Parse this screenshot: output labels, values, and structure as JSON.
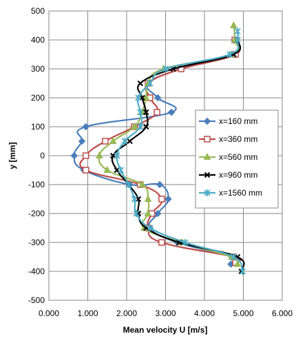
{
  "chart_data": {
    "type": "line",
    "title": "",
    "xlabel": "Mean velocity U [m/s]",
    "ylabel": "y [mm]",
    "xlim": [
      0,
      6
    ],
    "ylim": [
      -500,
      500
    ],
    "x_ticks": [
      0,
      1,
      2,
      3,
      4,
      5,
      6
    ],
    "x_tick_labels": [
      "0.000",
      "1.000",
      "2.000",
      "3.000",
      "4.000",
      "5.000",
      "6.000"
    ],
    "y_ticks": [
      500,
      400,
      300,
      200,
      100,
      0,
      -100,
      -200,
      -300,
      -400,
      -500
    ],
    "y_tick_labels": [
      "500",
      "400",
      "300",
      "200",
      "100",
      "0",
      "-100",
      "-200",
      "-300",
      "-400",
      "-500"
    ],
    "grid": true,
    "legend_position": "right",
    "series": [
      {
        "name": "x=160 mm",
        "color": "#4a7ebb",
        "marker": "diamond",
        "points": [
          {
            "u": 4.77,
            "y": 400
          },
          {
            "u": 4.8,
            "y": 350
          },
          {
            "u": 3.4,
            "y": 300
          },
          {
            "u": 2.55,
            "y": 250
          },
          {
            "u": 2.8,
            "y": 200
          },
          {
            "u": 3.15,
            "y": 150
          },
          {
            "u": 0.95,
            "y": 100
          },
          {
            "u": 0.85,
            "y": 50
          },
          {
            "u": 0.65,
            "y": 0
          },
          {
            "u": 0.9,
            "y": -50
          },
          {
            "u": 2.08,
            "y": -100
          },
          {
            "u": 2.85,
            "y": -100
          },
          {
            "u": 3.07,
            "y": -150
          },
          {
            "u": 2.8,
            "y": -200
          },
          {
            "u": 2.6,
            "y": -250
          },
          {
            "u": 3.3,
            "y": -300
          },
          {
            "u": 4.7,
            "y": -350
          },
          {
            "u": 4.68,
            "y": -375
          }
        ]
      },
      {
        "name": "x=360 mm",
        "color": "#be4b48",
        "marker": "square",
        "points": [
          {
            "u": 4.78,
            "y": 400
          },
          {
            "u": 4.8,
            "y": 350
          },
          {
            "u": 3.4,
            "y": 300
          },
          {
            "u": 2.55,
            "y": 250
          },
          {
            "u": 2.6,
            "y": 200
          },
          {
            "u": 2.78,
            "y": 150
          },
          {
            "u": 2.2,
            "y": 100
          },
          {
            "u": 1.45,
            "y": 50
          },
          {
            "u": 0.95,
            "y": 0
          },
          {
            "u": 0.95,
            "y": -50
          },
          {
            "u": 2.35,
            "y": -100
          },
          {
            "u": 2.9,
            "y": -150
          },
          {
            "u": 2.65,
            "y": -200
          },
          {
            "u": 2.55,
            "y": -250
          },
          {
            "u": 2.9,
            "y": -300
          },
          {
            "u": 4.75,
            "y": -350
          },
          {
            "u": 4.8,
            "y": -370
          }
        ]
      },
      {
        "name": "x=560 mm",
        "color": "#98b954",
        "marker": "triangle",
        "points": [
          {
            "u": 4.75,
            "y": 450
          },
          {
            "u": 4.78,
            "y": 400
          },
          {
            "u": 4.7,
            "y": 350
          },
          {
            "u": 2.95,
            "y": 300
          },
          {
            "u": 2.55,
            "y": 250
          },
          {
            "u": 2.5,
            "y": 200
          },
          {
            "u": 2.4,
            "y": 150
          },
          {
            "u": 2.2,
            "y": 100
          },
          {
            "u": 1.65,
            "y": 50
          },
          {
            "u": 1.3,
            "y": 0
          },
          {
            "u": 1.5,
            "y": -50
          },
          {
            "u": 2.4,
            "y": -100
          },
          {
            "u": 2.55,
            "y": -150
          },
          {
            "u": 2.55,
            "y": -200
          },
          {
            "u": 2.45,
            "y": -250
          },
          {
            "u": 3.4,
            "y": -300
          },
          {
            "u": 4.7,
            "y": -350
          },
          {
            "u": 4.85,
            "y": -375
          }
        ]
      },
      {
        "name": "x=960 mm",
        "color": "#000000",
        "marker": "cross",
        "points": [
          {
            "u": 4.85,
            "y": 400
          },
          {
            "u": 4.75,
            "y": 350
          },
          {
            "u": 3.2,
            "y": 300
          },
          {
            "u": 2.35,
            "y": 250
          },
          {
            "u": 2.4,
            "y": 200
          },
          {
            "u": 2.5,
            "y": 150
          },
          {
            "u": 2.5,
            "y": 100
          },
          {
            "u": 2.08,
            "y": 50
          },
          {
            "u": 1.65,
            "y": 0
          },
          {
            "u": 1.75,
            "y": -50
          },
          {
            "u": 2.05,
            "y": -100
          },
          {
            "u": 2.3,
            "y": -150
          },
          {
            "u": 2.3,
            "y": -200
          },
          {
            "u": 2.5,
            "y": -250
          },
          {
            "u": 3.35,
            "y": -300
          },
          {
            "u": 4.85,
            "y": -350
          },
          {
            "u": 4.95,
            "y": -400
          }
        ]
      },
      {
        "name": "x=1560 mm",
        "color": "#4bacc6",
        "marker": "star",
        "points": [
          {
            "u": 4.85,
            "y": 430
          },
          {
            "u": 4.85,
            "y": 400
          },
          {
            "u": 4.65,
            "y": 350
          },
          {
            "u": 3.0,
            "y": 300
          },
          {
            "u": 2.6,
            "y": 250
          },
          {
            "u": 2.3,
            "y": 200
          },
          {
            "u": 2.35,
            "y": 150
          },
          {
            "u": 2.35,
            "y": 100
          },
          {
            "u": 1.95,
            "y": 50
          },
          {
            "u": 1.75,
            "y": 0
          },
          {
            "u": 1.85,
            "y": -50
          },
          {
            "u": 2.05,
            "y": -100
          },
          {
            "u": 2.2,
            "y": -150
          },
          {
            "u": 2.25,
            "y": -200
          },
          {
            "u": 2.6,
            "y": -250
          },
          {
            "u": 3.5,
            "y": -300
          },
          {
            "u": 4.75,
            "y": -350
          },
          {
            "u": 4.98,
            "y": -400
          }
        ]
      }
    ]
  }
}
